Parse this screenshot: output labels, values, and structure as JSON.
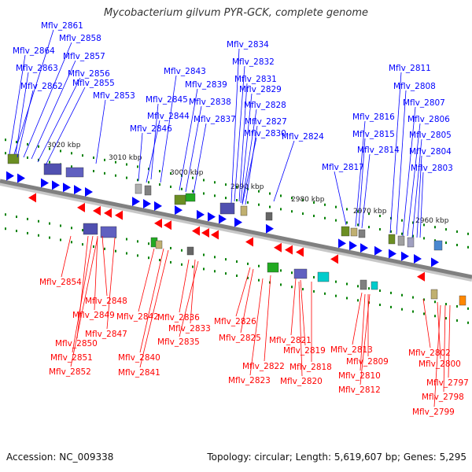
{
  "title": "Mycobacterium gilvum PYR-GCK, complete genome",
  "footer": {
    "accession": "Accession: NC_009338",
    "summary": "Topology: circular; Length: 5,619,607 bp; Genes: 5,295"
  },
  "colors": {
    "forward_strand": "#0000ff",
    "reverse_strand": "#ff0000",
    "backbone": "#808080",
    "tick": "#008000"
  },
  "kbp_ticks": [
    "3020 kbp",
    "3010 kbp",
    "3000 kbp",
    "2990 kbp",
    "2980 kbp",
    "2970 kbp",
    "2960 kbp"
  ],
  "forward_labels": [
    "Mflv_2861",
    "Mflv_2858",
    "Mflv_2864",
    "Mflv_2857",
    "Mflv_2863",
    "Mflv_2856",
    "Mflv_2862",
    "Mflv_2855",
    "Mflv_2853",
    "Mflv_2845",
    "Mflv_2844",
    "Mflv_2846",
    "Mflv_2843",
    "Mflv_2839",
    "Mflv_2838",
    "Mflv_2837",
    "Mflv_2834",
    "Mflv_2832",
    "Mflv_2831",
    "Mflv_2829",
    "Mflv_2828",
    "Mflv_2827",
    "Mflv_2830",
    "Mflv_2824",
    "Mflv_2817",
    "Mflv_2816",
    "Mflv_2815",
    "Mflv_2814",
    "Mflv_2811",
    "Mflv_2808",
    "Mflv_2807",
    "Mflv_2806",
    "Mflv_2805",
    "Mflv_2804",
    "Mflv_2803"
  ],
  "reverse_labels": [
    "Mflv_2854",
    "Mflv_2848",
    "Mflv_2849",
    "Mflv_2847",
    "Mflv_2850",
    "Mflv_2851",
    "Mflv_2852",
    "Mflv_2842",
    "Mflv_2840",
    "Mflv_2841",
    "Mflv_2836",
    "Mflv_2833",
    "Mflv_2835",
    "Mflv_2826",
    "Mflv_2825",
    "Mflv_2821",
    "Mflv_2819",
    "Mflv_2822",
    "Mflv_2818",
    "Mflv_2823",
    "Mflv_2820",
    "Mflv_2813",
    "Mflv_2809",
    "Mflv_2810",
    "Mflv_2812",
    "Mflv_2802",
    "Mflv_2800",
    "Mflv_2797",
    "Mflv_2798",
    "Mflv_2799"
  ]
}
